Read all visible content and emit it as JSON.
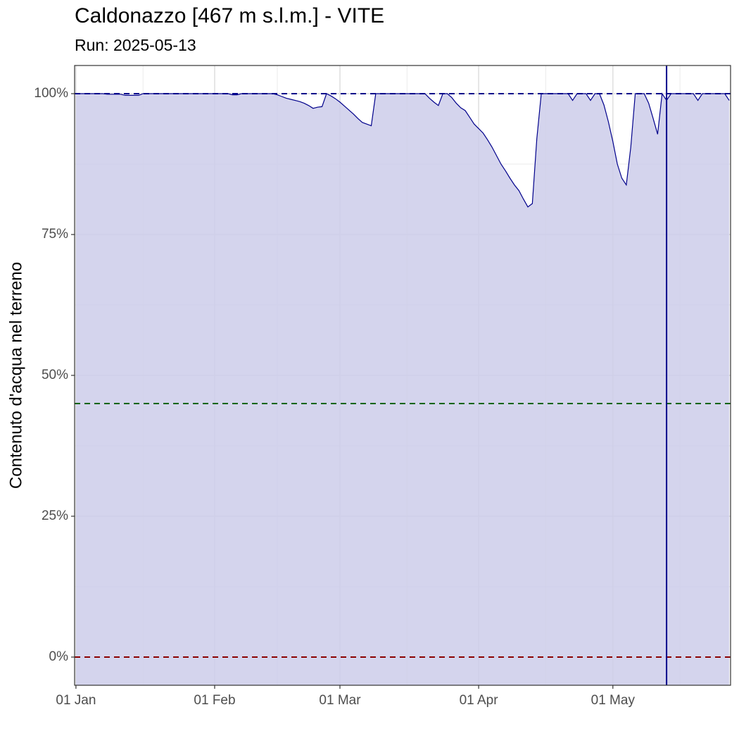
{
  "chart_data": {
    "type": "area",
    "title": "Caldonazzo [467 m s.l.m.] - VITE",
    "subtitle": "Run: 2025-05-13",
    "ylabel": "Contenuto d'acqua nel terreno",
    "x": [
      "01 Jan",
      "02 Jan",
      "03 Jan",
      "04 Jan",
      "05 Jan",
      "06 Jan",
      "07 Jan",
      "08 Jan",
      "09 Jan",
      "10 Jan",
      "11 Jan",
      "12 Jan",
      "13 Jan",
      "14 Jan",
      "15 Jan",
      "16 Jan",
      "17 Jan",
      "18 Jan",
      "19 Jan",
      "20 Jan",
      "21 Jan",
      "22 Jan",
      "23 Jan",
      "24 Jan",
      "25 Jan",
      "26 Jan",
      "27 Jan",
      "28 Jan",
      "29 Jan",
      "30 Jan",
      "31 Jan",
      "01 Feb",
      "02 Feb",
      "03 Feb",
      "04 Feb",
      "05 Feb",
      "06 Feb",
      "07 Feb",
      "08 Feb",
      "09 Feb",
      "10 Feb",
      "11 Feb",
      "12 Feb",
      "13 Feb",
      "14 Feb",
      "15 Feb",
      "16 Feb",
      "17 Feb",
      "18 Feb",
      "19 Feb",
      "20 Feb",
      "21 Feb",
      "22 Feb",
      "23 Feb",
      "24 Feb",
      "25 Feb",
      "26 Feb",
      "27 Feb",
      "28 Feb",
      "01 Mar",
      "02 Mar",
      "03 Mar",
      "04 Mar",
      "05 Mar",
      "06 Mar",
      "07 Mar",
      "08 Mar",
      "09 Mar",
      "10 Mar",
      "11 Mar",
      "12 Mar",
      "13 Mar",
      "14 Mar",
      "15 Mar",
      "16 Mar",
      "17 Mar",
      "18 Mar",
      "19 Mar",
      "20 Mar",
      "21 Mar",
      "22 Mar",
      "23 Mar",
      "24 Mar",
      "25 Mar",
      "26 Mar",
      "27 Mar",
      "28 Mar",
      "29 Mar",
      "30 Mar",
      "31 Mar",
      "01 Apr",
      "02 Apr",
      "03 Apr",
      "04 Apr",
      "05 Apr",
      "06 Apr",
      "07 Apr",
      "08 Apr",
      "09 Apr",
      "10 Apr",
      "11 Apr",
      "12 Apr",
      "13 Apr",
      "14 Apr",
      "15 Apr",
      "16 Apr",
      "17 Apr",
      "18 Apr",
      "19 Apr",
      "20 Apr",
      "21 Apr",
      "22 Apr",
      "23 Apr",
      "24 Apr",
      "25 Apr",
      "26 Apr",
      "27 Apr",
      "28 Apr",
      "29 Apr",
      "30 Apr",
      "01 May",
      "02 May",
      "03 May",
      "04 May",
      "05 May",
      "06 May",
      "07 May",
      "08 May",
      "09 May",
      "10 May",
      "11 May",
      "12 May",
      "13 May",
      "14 May",
      "15 May",
      "16 May",
      "17 May",
      "18 May",
      "19 May",
      "20 May",
      "21 May",
      "22 May",
      "23 May",
      "24 May",
      "25 May",
      "26 May",
      "27 May"
    ],
    "values": [
      100,
      100,
      100,
      100,
      100,
      100,
      100,
      99.9,
      99.9,
      99.9,
      99.9,
      99.7,
      99.7,
      99.7,
      99.7,
      100,
      100,
      100,
      100,
      100,
      100,
      100,
      100,
      100,
      100,
      100,
      100,
      100,
      100,
      100,
      100,
      100,
      100,
      100,
      100,
      99.8,
      99.8,
      100,
      100,
      100,
      100,
      100,
      100,
      100,
      100,
      99.8,
      99.5,
      99.2,
      99,
      98.8,
      98.6,
      98.3,
      97.9,
      97.4,
      97.6,
      97.7,
      100,
      99.6,
      99.1,
      98.5,
      97.8,
      97.1,
      96.4,
      95.6,
      94.9,
      94.6,
      94.3,
      100,
      100,
      100,
      100,
      100,
      100,
      100,
      100,
      100,
      100,
      100,
      100,
      99.2,
      98.5,
      97.9,
      100,
      100,
      99.3,
      98.3,
      97.5,
      97,
      95.8,
      94.6,
      93.8,
      93,
      91.8,
      90.5,
      89,
      87.5,
      86.3,
      85,
      83.8,
      82.8,
      81.3,
      79.9,
      80.5,
      92,
      100,
      100,
      100,
      100,
      100,
      100,
      100,
      98.8,
      100,
      100,
      100,
      98.8,
      100,
      100,
      98,
      95,
      91.5,
      87.5,
      85,
      83.8,
      90.5,
      100,
      100,
      100,
      98.3,
      95.6,
      92.8,
      100,
      98.8,
      100,
      100,
      100,
      100,
      100,
      100,
      98.8,
      100,
      100,
      100,
      100,
      100,
      100,
      98.8
    ],
    "line_color": "#00008b",
    "fill_color": "#ccccea",
    "xticks": [
      "01 Jan",
      "01 Feb",
      "01 Mar",
      "01 Apr",
      "01 May"
    ],
    "xminor": [
      "16 Jan",
      "15 Feb",
      "16 Mar",
      "16 Apr",
      "16 May"
    ],
    "ylim": [
      -5,
      105
    ],
    "yticks": [
      {
        "value": 0,
        "label": "0%"
      },
      {
        "value": 25,
        "label": "25%"
      },
      {
        "value": 50,
        "label": "50%"
      },
      {
        "value": 75,
        "label": "75%"
      },
      {
        "value": 100,
        "label": "100%"
      }
    ],
    "yminor": [
      12.5,
      37.5,
      62.5,
      87.5
    ],
    "grid": true,
    "hlines": [
      {
        "value": 100,
        "color": "#00008b"
      },
      {
        "value": 45,
        "color": "#006400"
      },
      {
        "value": 0,
        "color": "#8b0000"
      }
    ],
    "vline": {
      "value": "13 May",
      "color": "#00008b"
    }
  }
}
